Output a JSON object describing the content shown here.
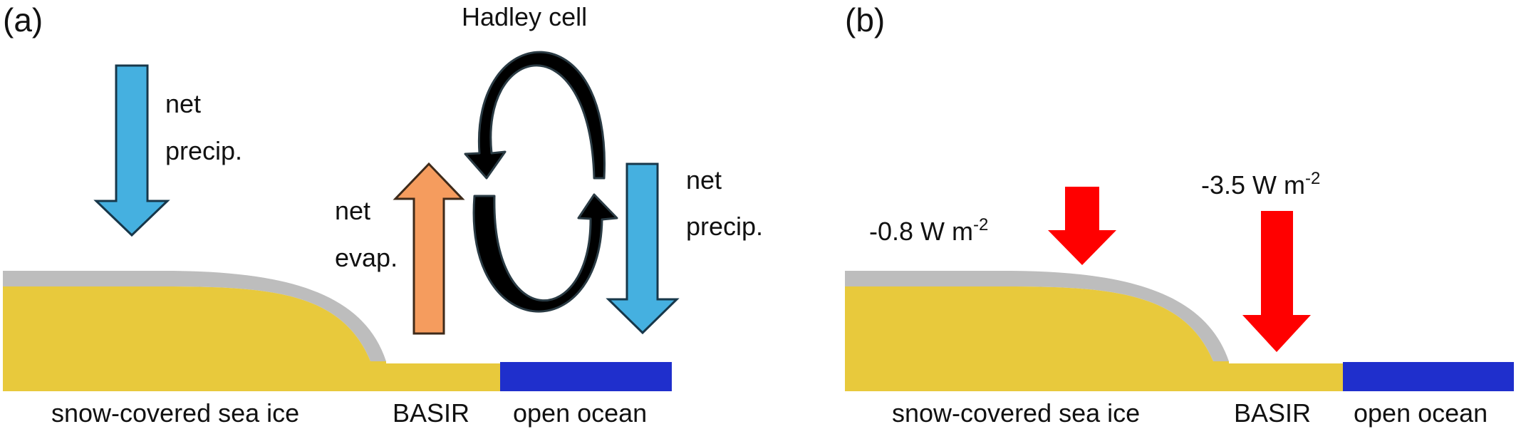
{
  "panel_a": {
    "tag": "(a)",
    "hadley_label": "Hadley cell",
    "precip_left": [
      "net",
      "precip."
    ],
    "evap": [
      "net",
      "evap."
    ],
    "precip_right": [
      "net",
      "precip."
    ],
    "bottom_labels": {
      "ice": "snow-covered sea ice",
      "basir": "BASIR",
      "ocean": "open ocean"
    }
  },
  "panel_b": {
    "tag": "(b)",
    "flux_ice": {
      "value": "-0.8 W m",
      "exp": "-2"
    },
    "flux_basir": {
      "value": "-3.5 W m",
      "exp": "-2"
    },
    "bottom_labels": {
      "ice": "snow-covered sea ice",
      "basir": "BASIR",
      "ocean": "open ocean"
    }
  },
  "colors": {
    "precip": "#45b0e0",
    "evap": "#f59c5e",
    "ice": "#e8c93c",
    "snow": "#bdbdbd",
    "ocean": "#1f2fcc",
    "flux": "#ff0000",
    "hadley": "#000000"
  }
}
